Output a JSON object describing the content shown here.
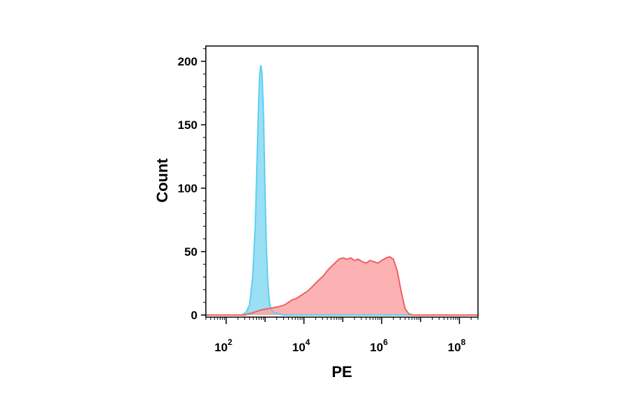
{
  "chart_data": {
    "type": "area",
    "title": "",
    "xlabel": "PE",
    "ylabel": "Count",
    "xscale": "log",
    "xlim": [
      30,
      300000000
    ],
    "ylim": [
      0,
      210
    ],
    "grid": false,
    "legend": "none",
    "yticks": [
      0,
      50,
      100,
      150,
      200
    ],
    "xticks": [
      {
        "value": 100,
        "base": "10",
        "exp": "2"
      },
      {
        "value": 10000,
        "base": "10",
        "exp": "4"
      },
      {
        "value": 1000000,
        "base": "10",
        "exp": "6"
      },
      {
        "value": 100000000,
        "base": "10",
        "exp": "8"
      }
    ],
    "series": [
      {
        "color": "#5ecff2",
        "fill": "#8fdcf2",
        "points": [
          [
            30,
            0
          ],
          [
            250,
            0
          ],
          [
            320,
            2
          ],
          [
            400,
            8
          ],
          [
            480,
            30
          ],
          [
            560,
            70
          ],
          [
            620,
            120
          ],
          [
            680,
            165
          ],
          [
            730,
            190
          ],
          [
            780,
            197
          ],
          [
            840,
            190
          ],
          [
            920,
            155
          ],
          [
            1000,
            100
          ],
          [
            1080,
            55
          ],
          [
            1180,
            25
          ],
          [
            1300,
            10
          ],
          [
            1450,
            4
          ],
          [
            1700,
            2
          ],
          [
            2200,
            1
          ],
          [
            3000,
            0
          ],
          [
            300000000,
            0
          ]
        ]
      },
      {
        "color": "#f06060",
        "fill": "#fca5a5",
        "points": [
          [
            30,
            0
          ],
          [
            300,
            0
          ],
          [
            500,
            2
          ],
          [
            800,
            4
          ],
          [
            1200,
            5
          ],
          [
            1800,
            6
          ],
          [
            2500,
            7
          ],
          [
            3200,
            8
          ],
          [
            4000,
            10
          ],
          [
            5000,
            12
          ],
          [
            6300,
            13
          ],
          [
            8000,
            15
          ],
          [
            10000,
            17
          ],
          [
            12600,
            19
          ],
          [
            16000,
            22
          ],
          [
            20000,
            25
          ],
          [
            25000,
            28
          ],
          [
            32000,
            31
          ],
          [
            40000,
            35
          ],
          [
            50000,
            38
          ],
          [
            63000,
            41
          ],
          [
            80000,
            44
          ],
          [
            100000,
            45
          ],
          [
            130000,
            44
          ],
          [
            160000,
            45
          ],
          [
            200000,
            43
          ],
          [
            250000,
            44
          ],
          [
            320000,
            42
          ],
          [
            400000,
            41
          ],
          [
            500000,
            43
          ],
          [
            630000,
            42
          ],
          [
            800000,
            41
          ],
          [
            1000000,
            43
          ],
          [
            1300000,
            45
          ],
          [
            1600000,
            46
          ],
          [
            2000000,
            44
          ],
          [
            2500000,
            35
          ],
          [
            3200000,
            18
          ],
          [
            4000000,
            5
          ],
          [
            5000000,
            1
          ],
          [
            6300000,
            0
          ],
          [
            300000000,
            0
          ]
        ]
      }
    ]
  }
}
